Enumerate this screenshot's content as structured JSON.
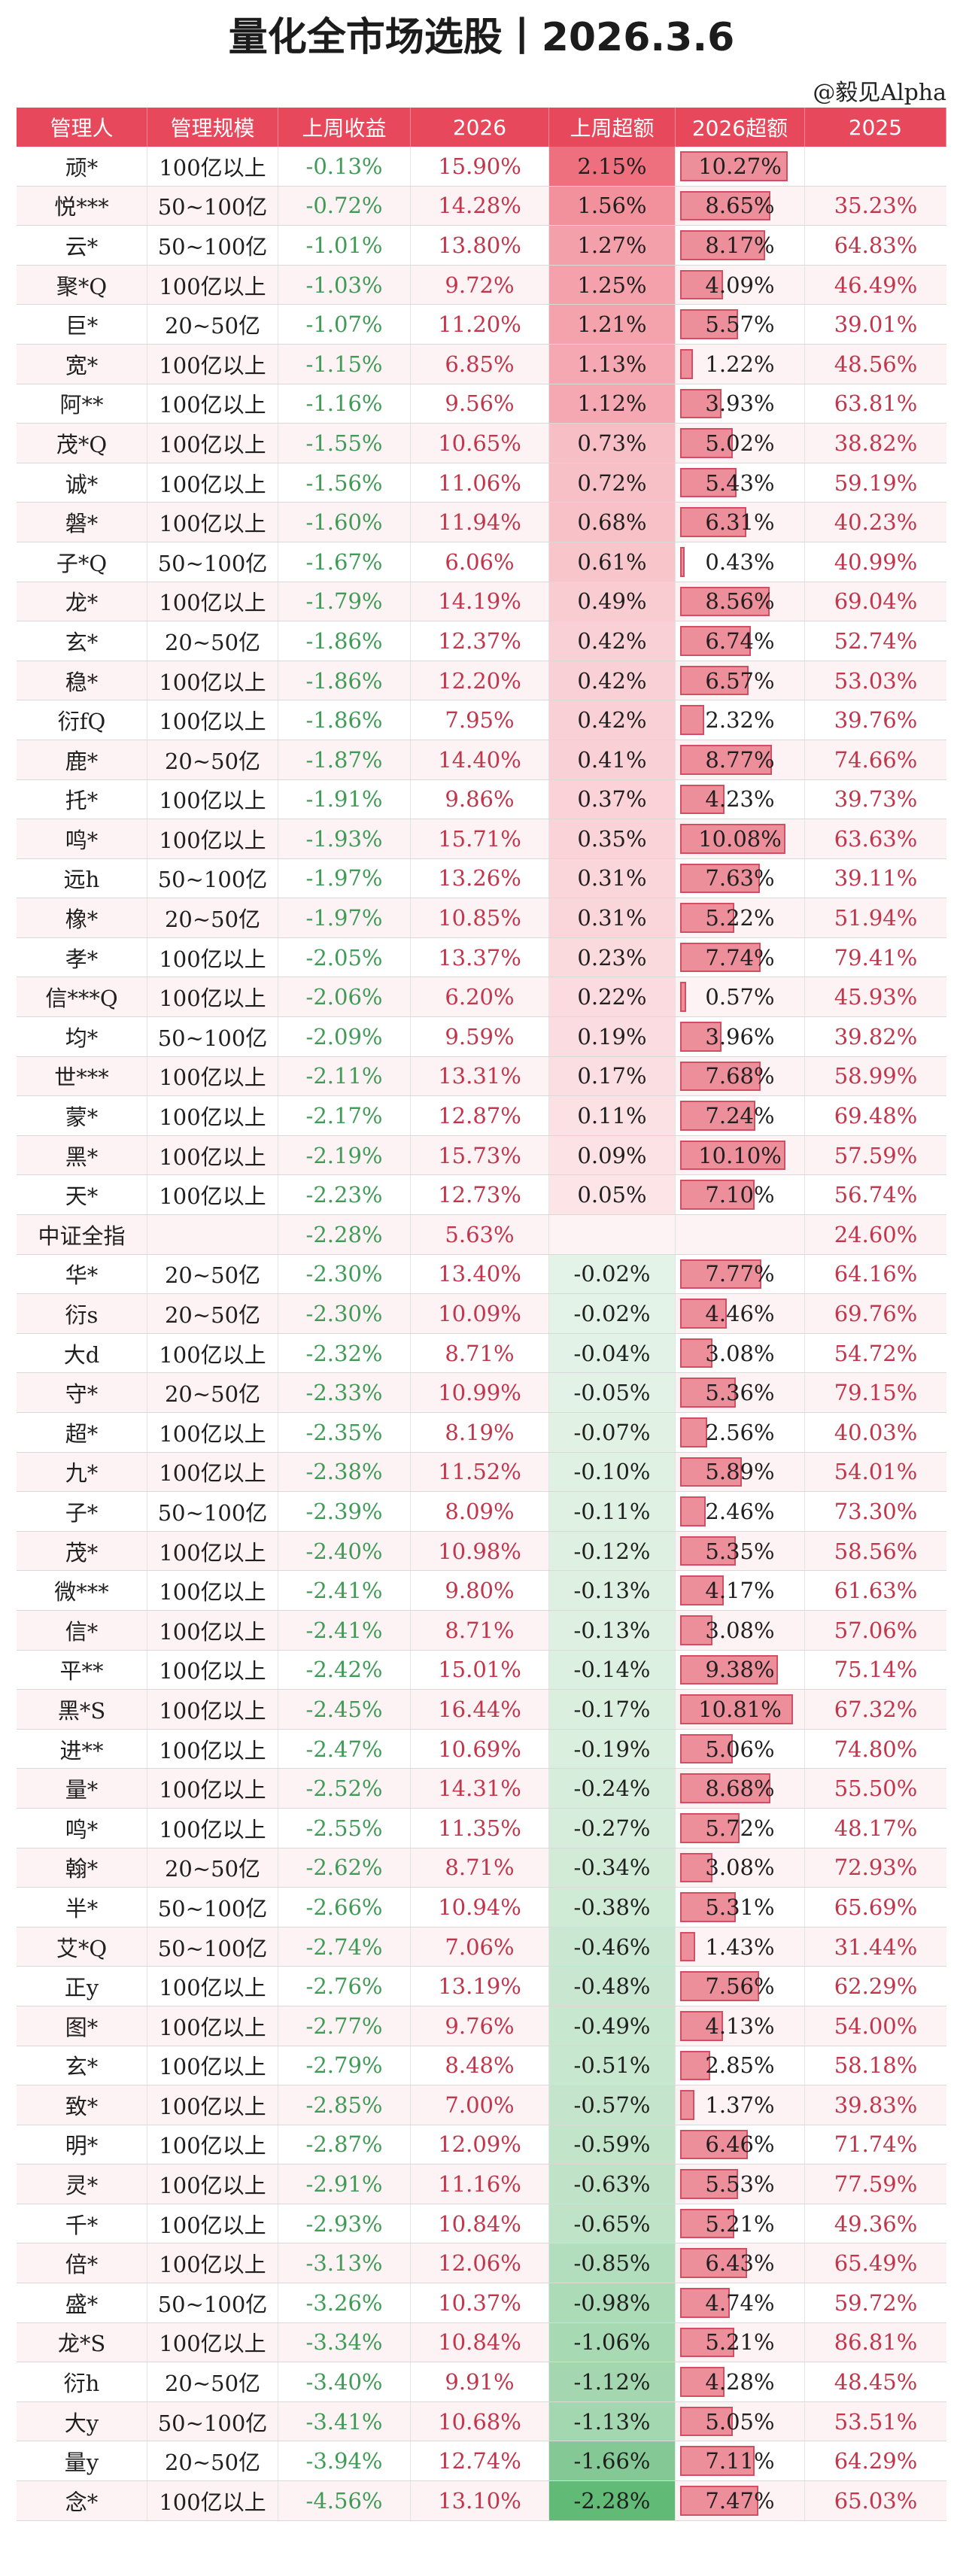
{
  "title": "量化全市场选股丨2026.3.6",
  "handle": "@毅见Alpha",
  "headers": [
    "管理人",
    "管理规模",
    "上周收益",
    "2026",
    "上周超额",
    "2026超额",
    "2025"
  ],
  "rows": [
    {
      "name": "顽*",
      "scale": "100亿以上",
      "week": "-0.13%",
      "ytd": "15.90%",
      "excess": "2.15%",
      "ytd_excess": "10.27%",
      "y2025": ""
    },
    {
      "name": "悦***",
      "scale": "50~100亿",
      "week": "-0.72%",
      "ytd": "14.28%",
      "excess": "1.56%",
      "ytd_excess": "8.65%",
      "y2025": "35.23%"
    },
    {
      "name": "云*",
      "scale": "50~100亿",
      "week": "-1.01%",
      "ytd": "13.80%",
      "excess": "1.27%",
      "ytd_excess": "8.17%",
      "y2025": "64.83%"
    },
    {
      "name": "聚*Q",
      "scale": "100亿以上",
      "week": "-1.03%",
      "ytd": "9.72%",
      "excess": "1.25%",
      "ytd_excess": "4.09%",
      "y2025": "46.49%"
    },
    {
      "name": "巨*",
      "scale": "20~50亿",
      "week": "-1.07%",
      "ytd": "11.20%",
      "excess": "1.21%",
      "ytd_excess": "5.57%",
      "y2025": "39.01%"
    },
    {
      "name": "宽*",
      "scale": "100亿以上",
      "week": "-1.15%",
      "ytd": "6.85%",
      "excess": "1.13%",
      "ytd_excess": "1.22%",
      "y2025": "48.56%"
    },
    {
      "name": "阿**",
      "scale": "100亿以上",
      "week": "-1.16%",
      "ytd": "9.56%",
      "excess": "1.12%",
      "ytd_excess": "3.93%",
      "y2025": "63.81%"
    },
    {
      "name": "茂*Q",
      "scale": "100亿以上",
      "week": "-1.55%",
      "ytd": "10.65%",
      "excess": "0.73%",
      "ytd_excess": "5.02%",
      "y2025": "38.82%"
    },
    {
      "name": "诚*",
      "scale": "100亿以上",
      "week": "-1.56%",
      "ytd": "11.06%",
      "excess": "0.72%",
      "ytd_excess": "5.43%",
      "y2025": "59.19%"
    },
    {
      "name": "磐*",
      "scale": "100亿以上",
      "week": "-1.60%",
      "ytd": "11.94%",
      "excess": "0.68%",
      "ytd_excess": "6.31%",
      "y2025": "40.23%"
    },
    {
      "name": "子*Q",
      "scale": "50~100亿",
      "week": "-1.67%",
      "ytd": "6.06%",
      "excess": "0.61%",
      "ytd_excess": "0.43%",
      "y2025": "40.99%"
    },
    {
      "name": "龙*",
      "scale": "100亿以上",
      "week": "-1.79%",
      "ytd": "14.19%",
      "excess": "0.49%",
      "ytd_excess": "8.56%",
      "y2025": "69.04%"
    },
    {
      "name": "玄*",
      "scale": "20~50亿",
      "week": "-1.86%",
      "ytd": "12.37%",
      "excess": "0.42%",
      "ytd_excess": "6.74%",
      "y2025": "52.74%"
    },
    {
      "name": "稳*",
      "scale": "100亿以上",
      "week": "-1.86%",
      "ytd": "12.20%",
      "excess": "0.42%",
      "ytd_excess": "6.57%",
      "y2025": "53.03%"
    },
    {
      "name": "衍fQ",
      "scale": "100亿以上",
      "week": "-1.86%",
      "ytd": "7.95%",
      "excess": "0.42%",
      "ytd_excess": "2.32%",
      "y2025": "39.76%"
    },
    {
      "name": "鹿*",
      "scale": "20~50亿",
      "week": "-1.87%",
      "ytd": "14.40%",
      "excess": "0.41%",
      "ytd_excess": "8.77%",
      "y2025": "74.66%"
    },
    {
      "name": "托*",
      "scale": "100亿以上",
      "week": "-1.91%",
      "ytd": "9.86%",
      "excess": "0.37%",
      "ytd_excess": "4.23%",
      "y2025": "39.73%"
    },
    {
      "name": "鸣*",
      "scale": "100亿以上",
      "week": "-1.93%",
      "ytd": "15.71%",
      "excess": "0.35%",
      "ytd_excess": "10.08%",
      "y2025": "63.63%"
    },
    {
      "name": "远h",
      "scale": "50~100亿",
      "week": "-1.97%",
      "ytd": "13.26%",
      "excess": "0.31%",
      "ytd_excess": "7.63%",
      "y2025": "39.11%"
    },
    {
      "name": "橡*",
      "scale": "20~50亿",
      "week": "-1.97%",
      "ytd": "10.85%",
      "excess": "0.31%",
      "ytd_excess": "5.22%",
      "y2025": "51.94%"
    },
    {
      "name": "孝*",
      "scale": "100亿以上",
      "week": "-2.05%",
      "ytd": "13.37%",
      "excess": "0.23%",
      "ytd_excess": "7.74%",
      "y2025": "79.41%"
    },
    {
      "name": "信***Q",
      "scale": "100亿以上",
      "week": "-2.06%",
      "ytd": "6.20%",
      "excess": "0.22%",
      "ytd_excess": "0.57%",
      "y2025": "45.93%"
    },
    {
      "name": "均*",
      "scale": "50~100亿",
      "week": "-2.09%",
      "ytd": "9.59%",
      "excess": "0.19%",
      "ytd_excess": "3.96%",
      "y2025": "39.82%"
    },
    {
      "name": "世***",
      "scale": "100亿以上",
      "week": "-2.11%",
      "ytd": "13.31%",
      "excess": "0.17%",
      "ytd_excess": "7.68%",
      "y2025": "58.99%"
    },
    {
      "name": "蒙*",
      "scale": "100亿以上",
      "week": "-2.17%",
      "ytd": "12.87%",
      "excess": "0.11%",
      "ytd_excess": "7.24%",
      "y2025": "69.48%"
    },
    {
      "name": "黑*",
      "scale": "100亿以上",
      "week": "-2.19%",
      "ytd": "15.73%",
      "excess": "0.09%",
      "ytd_excess": "10.10%",
      "y2025": "57.59%"
    },
    {
      "name": "天*",
      "scale": "100亿以上",
      "week": "-2.23%",
      "ytd": "12.73%",
      "excess": "0.05%",
      "ytd_excess": "7.10%",
      "y2025": "56.74%"
    },
    {
      "name": "中证全指",
      "scale": "",
      "week": "-2.28%",
      "ytd": "5.63%",
      "excess": "",
      "ytd_excess": "",
      "y2025": "24.60%"
    },
    {
      "name": "华*",
      "scale": "20~50亿",
      "week": "-2.30%",
      "ytd": "13.40%",
      "excess": "-0.02%",
      "ytd_excess": "7.77%",
      "y2025": "64.16%"
    },
    {
      "name": "衍s",
      "scale": "20~50亿",
      "week": "-2.30%",
      "ytd": "10.09%",
      "excess": "-0.02%",
      "ytd_excess": "4.46%",
      "y2025": "69.76%"
    },
    {
      "name": "大d",
      "scale": "100亿以上",
      "week": "-2.32%",
      "ytd": "8.71%",
      "excess": "-0.04%",
      "ytd_excess": "3.08%",
      "y2025": "54.72%"
    },
    {
      "name": "守*",
      "scale": "20~50亿",
      "week": "-2.33%",
      "ytd": "10.99%",
      "excess": "-0.05%",
      "ytd_excess": "5.36%",
      "y2025": "79.15%"
    },
    {
      "name": "超*",
      "scale": "100亿以上",
      "week": "-2.35%",
      "ytd": "8.19%",
      "excess": "-0.07%",
      "ytd_excess": "2.56%",
      "y2025": "40.03%"
    },
    {
      "name": "九*",
      "scale": "100亿以上",
      "week": "-2.38%",
      "ytd": "11.52%",
      "excess": "-0.10%",
      "ytd_excess": "5.89%",
      "y2025": "54.01%"
    },
    {
      "name": "子*",
      "scale": "50~100亿",
      "week": "-2.39%",
      "ytd": "8.09%",
      "excess": "-0.11%",
      "ytd_excess": "2.46%",
      "y2025": "73.30%"
    },
    {
      "name": "茂*",
      "scale": "100亿以上",
      "week": "-2.40%",
      "ytd": "10.98%",
      "excess": "-0.12%",
      "ytd_excess": "5.35%",
      "y2025": "58.56%"
    },
    {
      "name": "微***",
      "scale": "100亿以上",
      "week": "-2.41%",
      "ytd": "9.80%",
      "excess": "-0.13%",
      "ytd_excess": "4.17%",
      "y2025": "61.63%"
    },
    {
      "name": "信*",
      "scale": "100亿以上",
      "week": "-2.41%",
      "ytd": "8.71%",
      "excess": "-0.13%",
      "ytd_excess": "3.08%",
      "y2025": "57.06%"
    },
    {
      "name": "平**",
      "scale": "100亿以上",
      "week": "-2.42%",
      "ytd": "15.01%",
      "excess": "-0.14%",
      "ytd_excess": "9.38%",
      "y2025": "75.14%"
    },
    {
      "name": "黑*S",
      "scale": "100亿以上",
      "week": "-2.45%",
      "ytd": "16.44%",
      "excess": "-0.17%",
      "ytd_excess": "10.81%",
      "y2025": "67.32%"
    },
    {
      "name": "进**",
      "scale": "100亿以上",
      "week": "-2.47%",
      "ytd": "10.69%",
      "excess": "-0.19%",
      "ytd_excess": "5.06%",
      "y2025": "74.80%"
    },
    {
      "name": "量*",
      "scale": "100亿以上",
      "week": "-2.52%",
      "ytd": "14.31%",
      "excess": "-0.24%",
      "ytd_excess": "8.68%",
      "y2025": "55.50%"
    },
    {
      "name": "鸣*",
      "scale": "100亿以上",
      "week": "-2.55%",
      "ytd": "11.35%",
      "excess": "-0.27%",
      "ytd_excess": "5.72%",
      "y2025": "48.17%"
    },
    {
      "name": "翰*",
      "scale": "20~50亿",
      "week": "-2.62%",
      "ytd": "8.71%",
      "excess": "-0.34%",
      "ytd_excess": "3.08%",
      "y2025": "72.93%"
    },
    {
      "name": "半*",
      "scale": "50~100亿",
      "week": "-2.66%",
      "ytd": "10.94%",
      "excess": "-0.38%",
      "ytd_excess": "5.31%",
      "y2025": "65.69%"
    },
    {
      "name": "艾*Q",
      "scale": "50~100亿",
      "week": "-2.74%",
      "ytd": "7.06%",
      "excess": "-0.46%",
      "ytd_excess": "1.43%",
      "y2025": "31.44%"
    },
    {
      "name": "正y",
      "scale": "100亿以上",
      "week": "-2.76%",
      "ytd": "13.19%",
      "excess": "-0.48%",
      "ytd_excess": "7.56%",
      "y2025": "62.29%"
    },
    {
      "name": "图*",
      "scale": "100亿以上",
      "week": "-2.77%",
      "ytd": "9.76%",
      "excess": "-0.49%",
      "ytd_excess": "4.13%",
      "y2025": "54.00%"
    },
    {
      "name": "玄*",
      "scale": "100亿以上",
      "week": "-2.79%",
      "ytd": "8.48%",
      "excess": "-0.51%",
      "ytd_excess": "2.85%",
      "y2025": "58.18%"
    },
    {
      "name": "致*",
      "scale": "100亿以上",
      "week": "-2.85%",
      "ytd": "7.00%",
      "excess": "-0.57%",
      "ytd_excess": "1.37%",
      "y2025": "39.83%"
    },
    {
      "name": "明*",
      "scale": "100亿以上",
      "week": "-2.87%",
      "ytd": "12.09%",
      "excess": "-0.59%",
      "ytd_excess": "6.46%",
      "y2025": "71.74%"
    },
    {
      "name": "灵*",
      "scale": "100亿以上",
      "week": "-2.91%",
      "ytd": "11.16%",
      "excess": "-0.63%",
      "ytd_excess": "5.53%",
      "y2025": "77.59%"
    },
    {
      "name": "千*",
      "scale": "100亿以上",
      "week": "-2.93%",
      "ytd": "10.84%",
      "excess": "-0.65%",
      "ytd_excess": "5.21%",
      "y2025": "49.36%"
    },
    {
      "name": "倍*",
      "scale": "100亿以上",
      "week": "-3.13%",
      "ytd": "12.06%",
      "excess": "-0.85%",
      "ytd_excess": "6.43%",
      "y2025": "65.49%"
    },
    {
      "name": "盛*",
      "scale": "50~100亿",
      "week": "-3.26%",
      "ytd": "10.37%",
      "excess": "-0.98%",
      "ytd_excess": "4.74%",
      "y2025": "59.72%"
    },
    {
      "name": "龙*S",
      "scale": "100亿以上",
      "week": "-3.34%",
      "ytd": "10.84%",
      "excess": "-1.06%",
      "ytd_excess": "5.21%",
      "y2025": "86.81%"
    },
    {
      "name": "衍h",
      "scale": "20~50亿",
      "week": "-3.40%",
      "ytd": "9.91%",
      "excess": "-1.12%",
      "ytd_excess": "4.28%",
      "y2025": "48.45%"
    },
    {
      "name": "大y",
      "scale": "50~100亿",
      "week": "-3.41%",
      "ytd": "10.68%",
      "excess": "-1.13%",
      "ytd_excess": "5.05%",
      "y2025": "53.51%"
    },
    {
      "name": "量y",
      "scale": "20~50亿",
      "week": "-3.94%",
      "ytd": "12.74%",
      "excess": "-1.66%",
      "ytd_excess": "7.11%",
      "y2025": "64.29%"
    },
    {
      "name": "念*",
      "scale": "100亿以上",
      "week": "-4.56%",
      "ytd": "13.10%",
      "excess": "-2.28%",
      "ytd_excess": "7.47%",
      "y2025": "65.03%"
    }
  ],
  "colors": {
    "header_bg": "#e8485b",
    "positive_text": "#c2364b",
    "negative_text": "#3f9b56",
    "heat_positive": "#ec5f70",
    "heat_negative": "#4fb266",
    "bar_fill": "#ec8f9b"
  }
}
